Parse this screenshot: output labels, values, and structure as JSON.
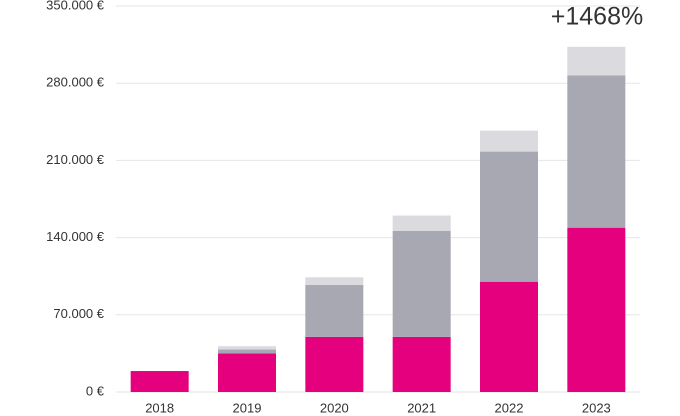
{
  "chart_data": {
    "type": "stacked_bar",
    "annotation": "+1468%",
    "categories": [
      "2018",
      "2019",
      "2020",
      "2021",
      "2022",
      "2023"
    ],
    "series": [
      {
        "color": "#e5007d",
        "values": [
          19000,
          35000,
          50000,
          50000,
          100000,
          149000
        ]
      },
      {
        "color": "#a7a8b1",
        "values": [
          0,
          3500,
          47000,
          96000,
          118000,
          138000
        ]
      },
      {
        "color": "#dadadf",
        "values": [
          0,
          3000,
          7000,
          14000,
          19000,
          26000
        ]
      }
    ],
    "ylim": [
      0,
      350000
    ],
    "yticks": [
      {
        "value": 0,
        "label": "0 €"
      },
      {
        "value": 70000,
        "label": "70.000 €"
      },
      {
        "value": 140000,
        "label": "140.000 €"
      },
      {
        "value": 210000,
        "label": "210.000 €"
      },
      {
        "value": 280000,
        "label": "280.000 €"
      },
      {
        "value": 350000,
        "label": "350.000 €"
      }
    ],
    "grid": true
  }
}
